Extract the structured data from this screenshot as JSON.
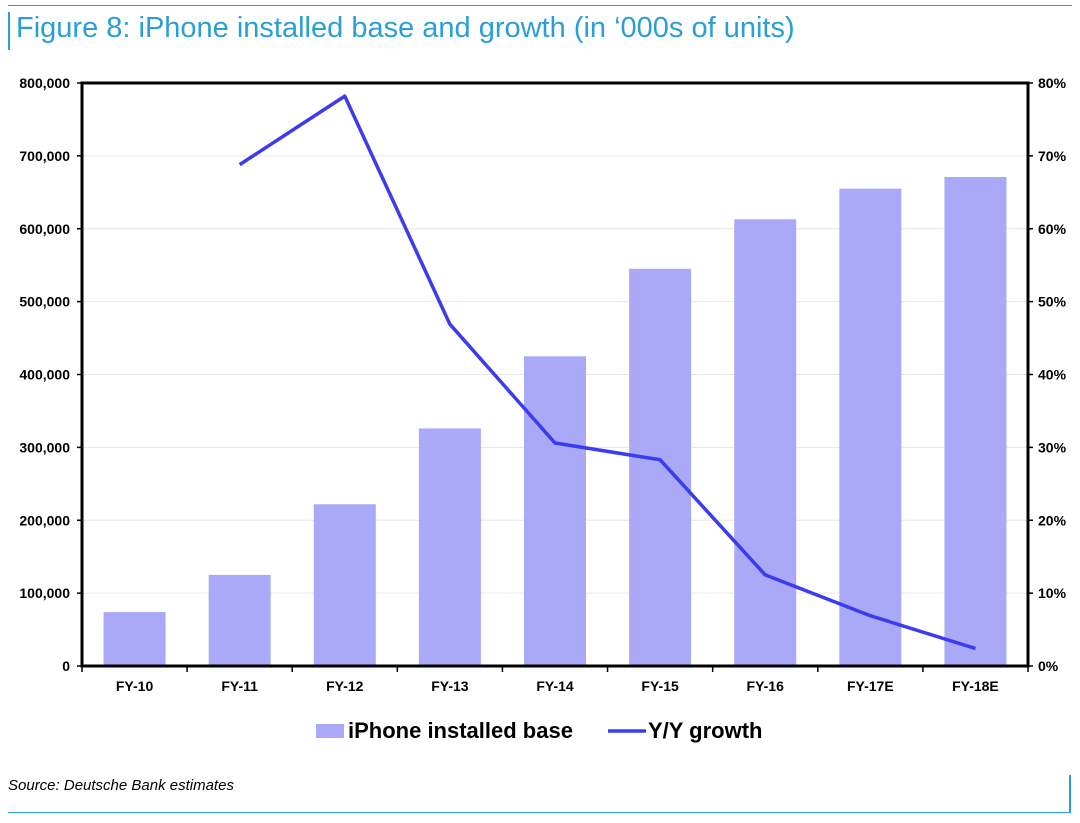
{
  "header": {
    "title": "Figure 8: iPhone installed base and growth (in ‘000s of units)"
  },
  "footer": {
    "source": "Source: Deutsche Bank estimates"
  },
  "colors": {
    "accent": "#2a9fd6",
    "bar": "#a9a9f7",
    "line": "#3b3bf0"
  },
  "chart_data": {
    "type": "bar",
    "title": "Figure 8: iPhone installed base and growth (in ‘000s of units)",
    "categories": [
      "FY-10",
      "FY-11",
      "FY-12",
      "FY-13",
      "FY-14",
      "FY-15",
      "FY-16",
      "FY-17E",
      "FY-18E"
    ],
    "series": [
      {
        "name": "iPhone installed base",
        "kind": "bar",
        "axis": "left",
        "values": [
          74000,
          125000,
          222000,
          326000,
          425000,
          545000,
          613000,
          655000,
          671000
        ]
      },
      {
        "name": "Y/Y growth",
        "kind": "line",
        "axis": "right",
        "values": [
          null,
          68.8,
          78.2,
          46.9,
          30.6,
          28.3,
          12.5,
          6.9,
          2.4
        ]
      }
    ],
    "left_axis": {
      "ylim": [
        0,
        800000
      ],
      "ticks": [
        0,
        100000,
        200000,
        300000,
        400000,
        500000,
        600000,
        700000,
        800000
      ],
      "tick_labels": [
        "0",
        "100,000",
        "200,000",
        "300,000",
        "400,000",
        "500,000",
        "600,000",
        "700,000",
        "800,000"
      ]
    },
    "right_axis": {
      "ylim": [
        0,
        80
      ],
      "ticks": [
        0,
        10,
        20,
        30,
        40,
        50,
        60,
        70,
        80
      ],
      "tick_labels": [
        "0%",
        "10%",
        "20%",
        "30%",
        "40%",
        "50%",
        "60%",
        "70%",
        "80%"
      ]
    },
    "legend": {
      "position": "bottom-center",
      "entries": [
        "iPhone installed base",
        "Y/Y growth"
      ]
    },
    "grid": true
  }
}
